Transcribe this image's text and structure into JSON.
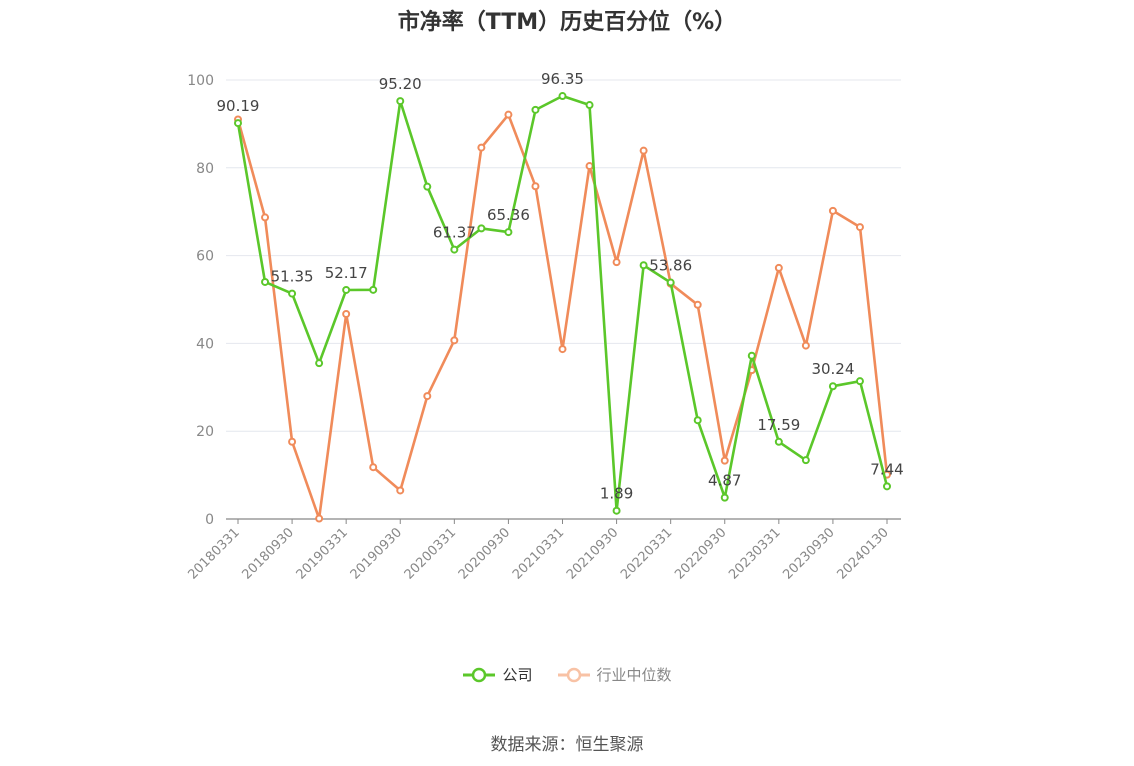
{
  "chart_data": {
    "type": "line",
    "title": "市净率（TTM）历史百分位（%）",
    "x": [
      "20180331",
      "20180630",
      "20180930",
      "20181231",
      "20190331",
      "20190630",
      "20190930",
      "20191231",
      "20200331",
      "20200630",
      "20200930",
      "20201231",
      "20210331",
      "20210630",
      "20210930",
      "20211231",
      "20220331",
      "20220630",
      "20220930",
      "20221231",
      "20230331",
      "20230630",
      "20230930",
      "20231231",
      "20240130"
    ],
    "x_tick_labels": [
      "20180331",
      "20180930",
      "20190331",
      "20190930",
      "20200331",
      "20200930",
      "20210331",
      "20210930",
      "20220331",
      "20220930",
      "20230331",
      "20230930",
      "20240130"
    ],
    "y_ticks": [
      "0",
      "20",
      "40",
      "60",
      "80",
      "100"
    ],
    "ylim": [
      0,
      100
    ],
    "grid": true,
    "legend_position": "bottom",
    "series": [
      {
        "name": "公司",
        "color": "#5bc72a",
        "values": [
          90.19,
          54.0,
          51.35,
          35.5,
          52.17,
          52.2,
          95.2,
          75.7,
          61.37,
          66.2,
          65.36,
          93.2,
          96.35,
          94.3,
          1.89,
          57.8,
          53.86,
          22.5,
          4.87,
          37.2,
          17.59,
          13.4,
          30.24,
          31.4,
          7.44
        ],
        "point_labels": {
          "0": "90.19",
          "2": "51.35",
          "4": "52.17",
          "6": "95.20",
          "8": "61.37",
          "10": "65.36",
          "12": "96.35",
          "14": "1.89",
          "16": "53.86",
          "18": "4.87",
          "20": "17.59",
          "22": "30.24",
          "24": "7.44"
        }
      },
      {
        "name": "行业中位数",
        "color": "#f08b5a",
        "values": [
          91.0,
          68.7,
          17.6,
          0.1,
          46.7,
          11.8,
          6.5,
          28.0,
          40.7,
          84.6,
          92.1,
          75.8,
          38.7,
          80.4,
          58.5,
          83.9,
          53.6,
          48.8,
          13.3,
          33.9,
          57.2,
          39.5,
          70.2,
          66.5,
          10.1
        ]
      }
    ]
  },
  "legend": {
    "company": "公司",
    "industry": "行业中位数"
  },
  "source": "数据来源：恒生聚源"
}
